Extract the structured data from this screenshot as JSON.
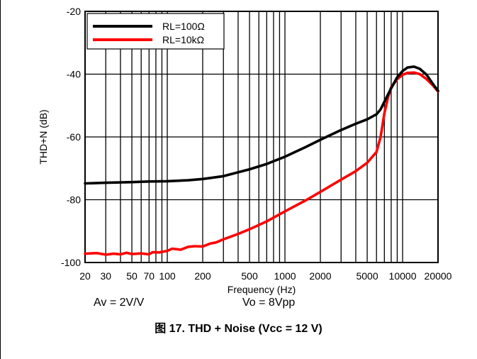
{
  "chart_data": {
    "type": "line",
    "xscale": "log",
    "xlim": [
      20,
      20000
    ],
    "ylim": [
      -100,
      -20
    ],
    "xlabel": "Frequency (Hz)",
    "ylabel": "THD+N (dB)",
    "x_ticks": [
      20,
      30,
      50,
      70,
      100,
      200,
      500,
      1000,
      2000,
      5000,
      10000,
      20000
    ],
    "x_tick_labels": [
      "20",
      "30",
      "50",
      "70",
      "100",
      "200",
      "500",
      "1000",
      "2000",
      "5000",
      "10000",
      "20000"
    ],
    "y_ticks": [
      -100,
      -80,
      -60,
      -40,
      -20
    ],
    "y_tick_labels": [
      "-100",
      "-80",
      "-60",
      "-40",
      "-20"
    ],
    "grid": true,
    "legend_position": "top-left",
    "series": [
      {
        "name": "RL=100Ω",
        "color": "#000000",
        "points": [
          [
            20,
            -74.8
          ],
          [
            30,
            -74.6
          ],
          [
            50,
            -74.4
          ],
          [
            70,
            -74.2
          ],
          [
            100,
            -74.1
          ],
          [
            150,
            -73.8
          ],
          [
            200,
            -73.4
          ],
          [
            300,
            -72.5
          ],
          [
            500,
            -70.3
          ],
          [
            700,
            -68.6
          ],
          [
            1000,
            -66.3
          ],
          [
            1500,
            -63.2
          ],
          [
            2000,
            -60.9
          ],
          [
            3000,
            -57.8
          ],
          [
            4000,
            -55.8
          ],
          [
            5000,
            -54.4
          ],
          [
            6000,
            -52.8
          ],
          [
            6500,
            -51.2
          ],
          [
            7000,
            -48.8
          ],
          [
            8000,
            -44.5
          ],
          [
            9000,
            -41.0
          ],
          [
            10000,
            -39.0
          ],
          [
            11000,
            -37.9
          ],
          [
            12500,
            -37.6
          ],
          [
            14000,
            -38.3
          ],
          [
            16000,
            -40.2
          ],
          [
            18000,
            -43.0
          ],
          [
            20000,
            -45.3
          ]
        ]
      },
      {
        "name": "RL=10kΩ",
        "color": "#ff0000",
        "points": [
          [
            20,
            -97.2
          ],
          [
            25,
            -97.0
          ],
          [
            30,
            -97.5
          ],
          [
            35,
            -97.2
          ],
          [
            40,
            -97.4
          ],
          [
            45,
            -96.9
          ],
          [
            50,
            -97.3
          ],
          [
            60,
            -97.1
          ],
          [
            70,
            -97.4
          ],
          [
            75,
            -96.7
          ],
          [
            85,
            -96.8
          ],
          [
            100,
            -96.3
          ],
          [
            110,
            -95.6
          ],
          [
            130,
            -95.9
          ],
          [
            150,
            -95.0
          ],
          [
            170,
            -94.8
          ],
          [
            200,
            -94.9
          ],
          [
            230,
            -94.0
          ],
          [
            260,
            -93.6
          ],
          [
            300,
            -92.6
          ],
          [
            400,
            -90.9
          ],
          [
            500,
            -89.4
          ],
          [
            700,
            -86.9
          ],
          [
            1000,
            -83.7
          ],
          [
            1500,
            -80.2
          ],
          [
            2000,
            -77.5
          ],
          [
            3000,
            -73.6
          ],
          [
            4000,
            -70.9
          ],
          [
            5000,
            -68.2
          ],
          [
            6000,
            -64.8
          ],
          [
            6500,
            -60.0
          ],
          [
            7000,
            -52.5
          ],
          [
            7500,
            -47.5
          ],
          [
            8000,
            -44.2
          ],
          [
            9000,
            -41.6
          ],
          [
            10000,
            -40.2
          ],
          [
            11000,
            -39.6
          ],
          [
            12500,
            -39.5
          ],
          [
            14000,
            -40.0
          ],
          [
            16000,
            -41.6
          ],
          [
            18000,
            -43.5
          ],
          [
            20000,
            -45.5
          ]
        ]
      }
    ]
  },
  "notes": {
    "av": "Av = 2V/V",
    "vo": "Vo = 8Vpp"
  },
  "caption": "图 17. THD + Noise (Vcc = 12 V)"
}
